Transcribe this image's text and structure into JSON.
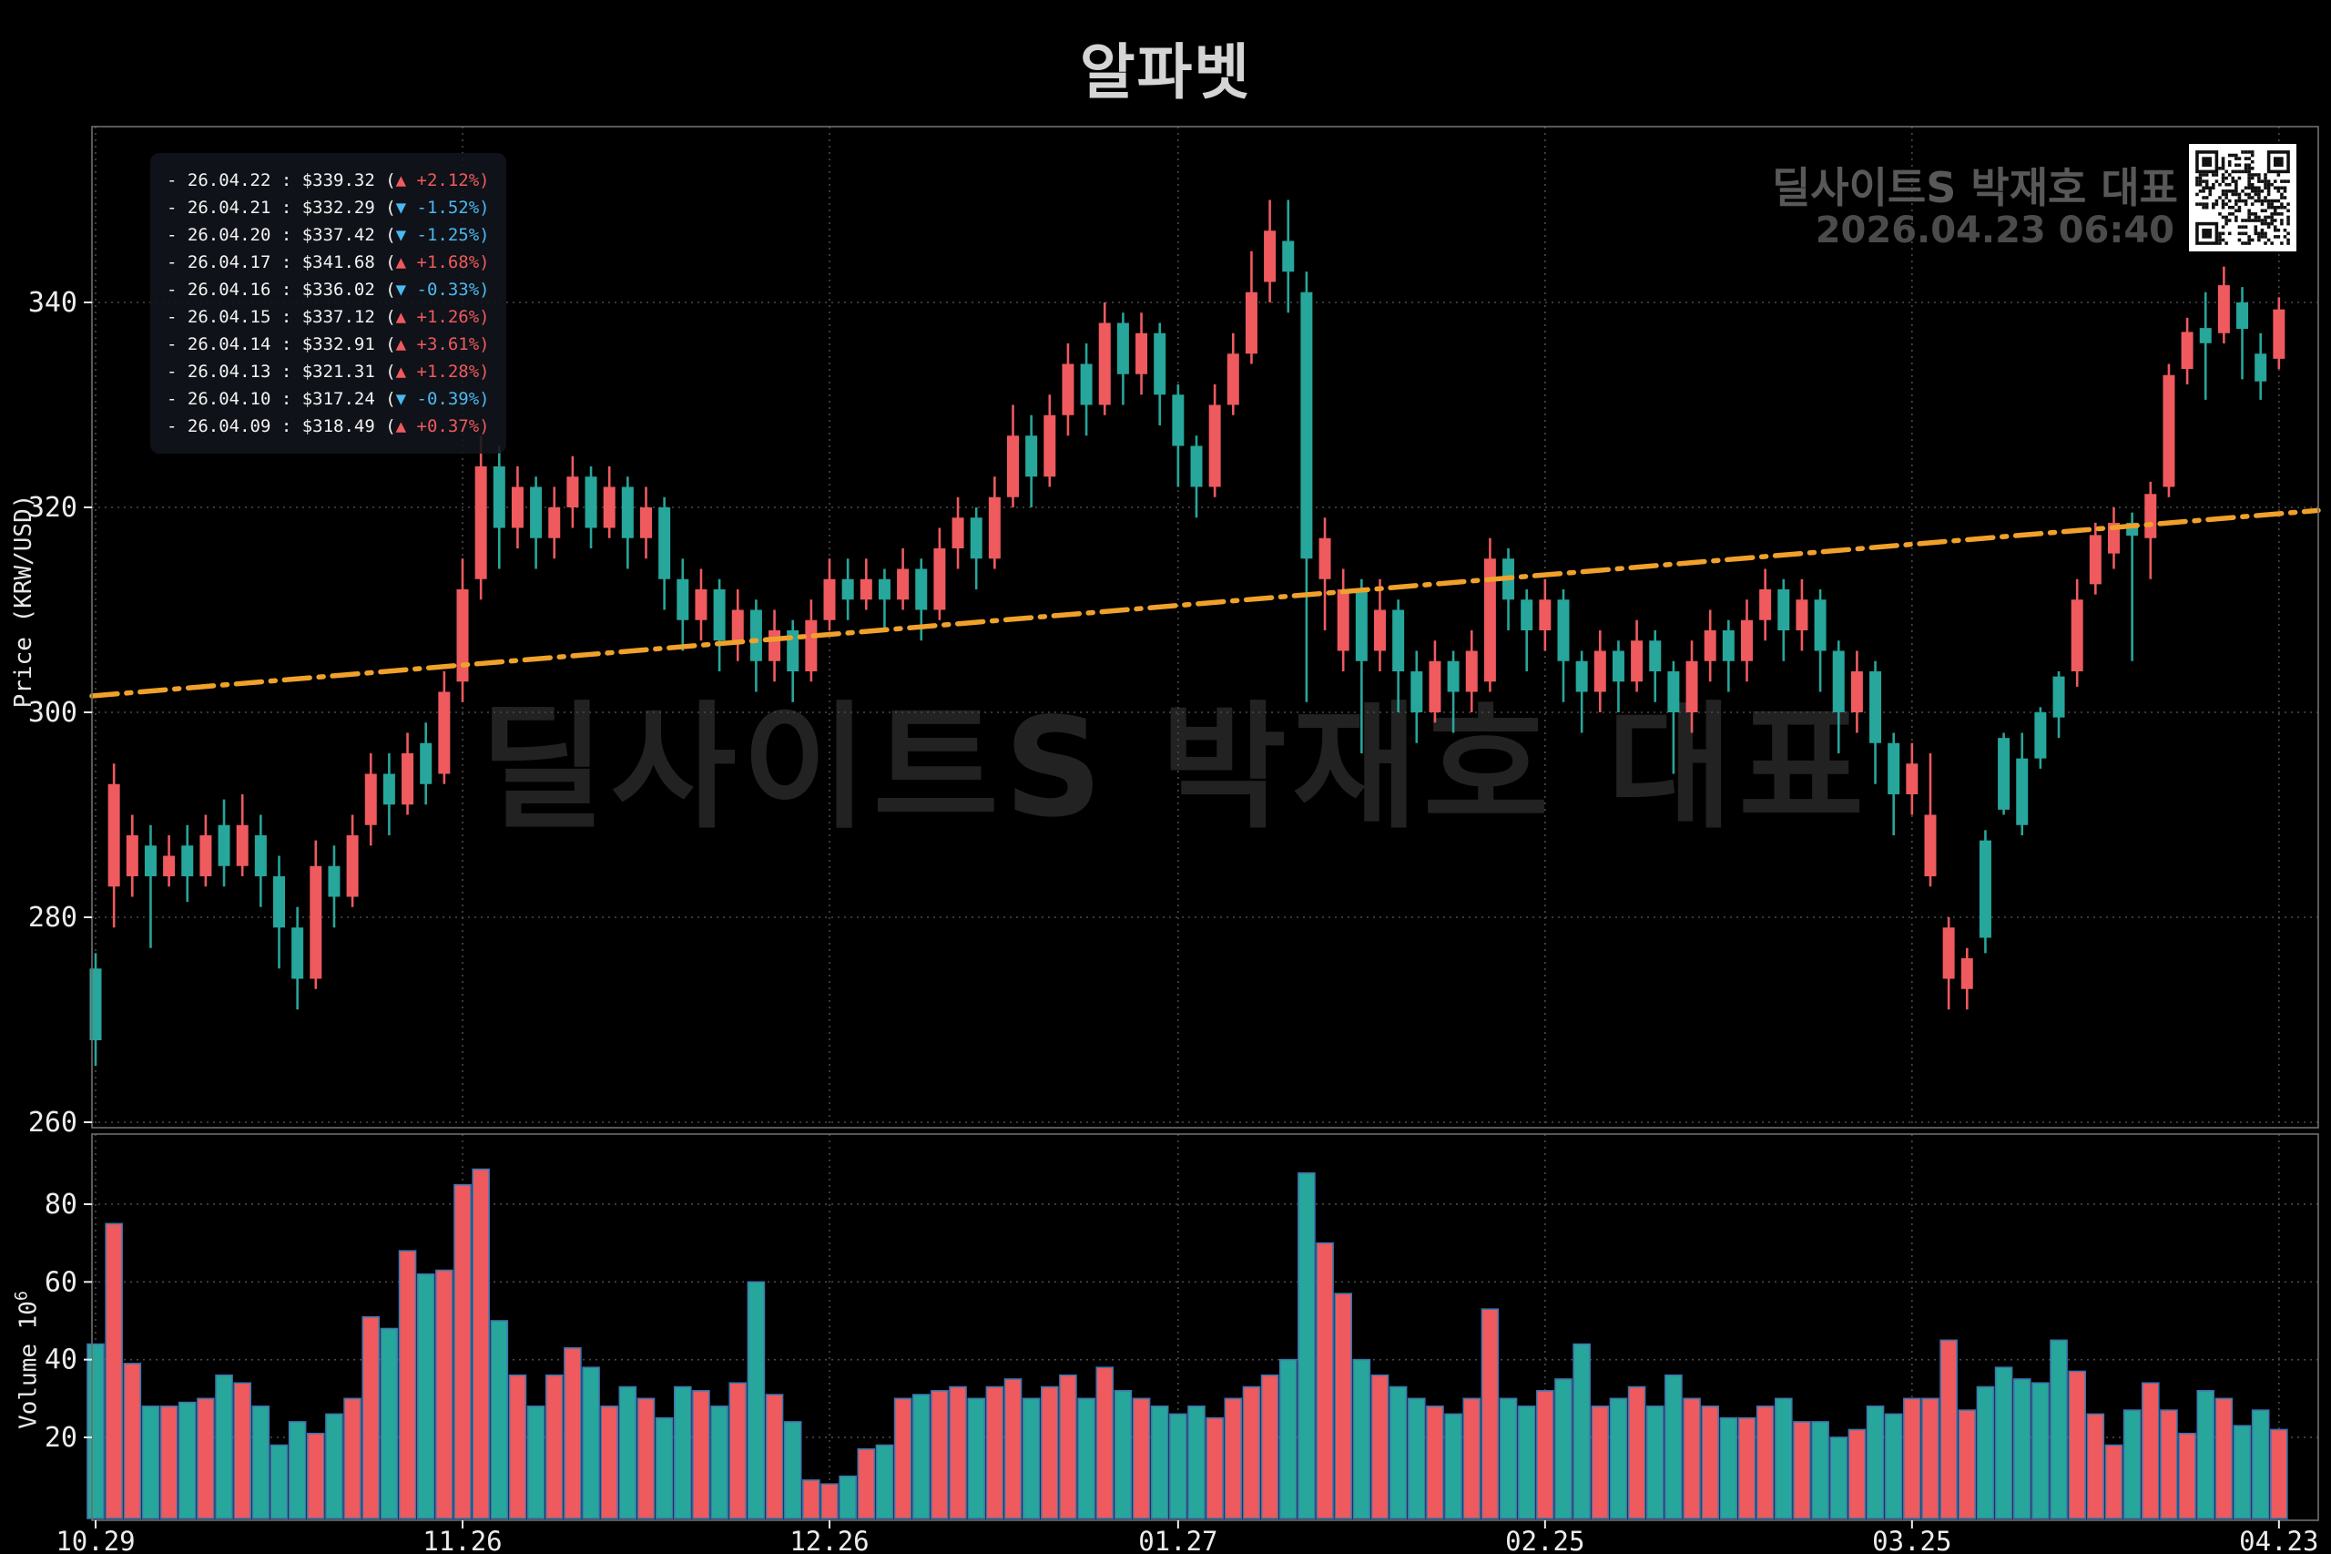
{
  "title": "알파벳",
  "watermark": "딜사이트S 박재호 대표",
  "source": {
    "name": "딜사이트S 박재호 대표",
    "timestamp": "2026.04.23 06:40"
  },
  "legend": {
    "rows": [
      {
        "date": "26.04.22",
        "price": "$339.32",
        "dir": "up",
        "pct": "+2.12%"
      },
      {
        "date": "26.04.21",
        "price": "$332.29",
        "dir": "down",
        "pct": "-1.52%"
      },
      {
        "date": "26.04.20",
        "price": "$337.42",
        "dir": "down",
        "pct": "-1.25%"
      },
      {
        "date": "26.04.17",
        "price": "$341.68",
        "dir": "up",
        "pct": "+1.68%"
      },
      {
        "date": "26.04.16",
        "price": "$336.02",
        "dir": "down",
        "pct": "-0.33%"
      },
      {
        "date": "26.04.15",
        "price": "$337.12",
        "dir": "up",
        "pct": "+1.26%"
      },
      {
        "date": "26.04.14",
        "price": "$332.91",
        "dir": "up",
        "pct": "+3.61%"
      },
      {
        "date": "26.04.13",
        "price": "$321.31",
        "dir": "up",
        "pct": "+1.28%"
      },
      {
        "date": "26.04.10",
        "price": "$317.24",
        "dir": "down",
        "pct": "-0.39%"
      },
      {
        "date": "26.04.09",
        "price": "$318.49",
        "dir": "up",
        "pct": "+0.37%"
      }
    ],
    "up_arrow": "▲",
    "down_arrow": "▼"
  },
  "axes": {
    "price_label": "Price (KRW/USD)",
    "price_ticks": [
      340,
      320,
      300,
      280,
      260
    ],
    "volume_label_base": "Volume  10",
    "volume_label_exp": "6",
    "volume_ticks": [
      80,
      60,
      40,
      20
    ],
    "x_ticks": [
      "10.29",
      "11.26",
      "12.26",
      "01.27",
      "02.25",
      "03.25",
      "04.23"
    ],
    "x_tick_indices": [
      0,
      20,
      40,
      59,
      79,
      99,
      119
    ]
  },
  "colors": {
    "up": "#ee5a5e",
    "down": "#27a69b",
    "volume_edge": "#3e76ae",
    "trend": "#f0a12b",
    "grid": "#4a4a4a",
    "spine": "#6e6e6e",
    "tick_text": "#ececec",
    "legend_up_text": "#ee5a5e",
    "legend_down_text": "#4cb8f0"
  },
  "chart_data": {
    "type": "candlestick",
    "title": "알파벳",
    "ylabel": "Price (KRW/USD)",
    "ylabel2": "Volume 10^6",
    "x_range": [
      "10.29",
      "04.23"
    ],
    "price_ylim": [
      259.5,
      357
    ],
    "volume_ylim": [
      0,
      97
    ],
    "grid": true,
    "trendline": {
      "style": "dashdot",
      "start_price": 301.6,
      "end_price": 319.7
    },
    "ohlc": [
      [
        275,
        276.5,
        265.5,
        268
      ],
      [
        283,
        295,
        279,
        293
      ],
      [
        284,
        290,
        282,
        288
      ],
      [
        287,
        289,
        277,
        284
      ],
      [
        284,
        288,
        283,
        286
      ],
      [
        287,
        289,
        281.5,
        284
      ],
      [
        284,
        290,
        283,
        288
      ],
      [
        289,
        291.5,
        283,
        285
      ],
      [
        285,
        292,
        284,
        289
      ],
      [
        288,
        290,
        281,
        284
      ],
      [
        284,
        286,
        275,
        279
      ],
      [
        279,
        281,
        271,
        274
      ],
      [
        274,
        287.5,
        273,
        285
      ],
      [
        285,
        287,
        279,
        282
      ],
      [
        282,
        290,
        281,
        288
      ],
      [
        289,
        296,
        287,
        294
      ],
      [
        294,
        296,
        288,
        291
      ],
      [
        291,
        298,
        290,
        296
      ],
      [
        297,
        299,
        291,
        293
      ],
      [
        294,
        304,
        293,
        302
      ],
      [
        303,
        315,
        301,
        312
      ],
      [
        313,
        327,
        311,
        324
      ],
      [
        324,
        326,
        314,
        318
      ],
      [
        318,
        324,
        316,
        322
      ],
      [
        322,
        323,
        314,
        317
      ],
      [
        317,
        322,
        315,
        320
      ],
      [
        320,
        325,
        318,
        323
      ],
      [
        323,
        324,
        316,
        318
      ],
      [
        318,
        324,
        317,
        322
      ],
      [
        322,
        323,
        314,
        317
      ],
      [
        317,
        322,
        315,
        320
      ],
      [
        320,
        321,
        310,
        313
      ],
      [
        313,
        315,
        306,
        309
      ],
      [
        309,
        314,
        307,
        312
      ],
      [
        312,
        313,
        304,
        307
      ],
      [
        307,
        312,
        305,
        310
      ],
      [
        310,
        311,
        302,
        305
      ],
      [
        305,
        310,
        303,
        308
      ],
      [
        308,
        309,
        301,
        304
      ],
      [
        304,
        311,
        303,
        309
      ],
      [
        309,
        315,
        308,
        313
      ],
      [
        313,
        315,
        309,
        311
      ],
      [
        311,
        315,
        310,
        313
      ],
      [
        313,
        314,
        308,
        311
      ],
      [
        311,
        316,
        310,
        314
      ],
      [
        314,
        315,
        307,
        310
      ],
      [
        310,
        318,
        309,
        316
      ],
      [
        316,
        321,
        314,
        319
      ],
      [
        319,
        320,
        312,
        315
      ],
      [
        315,
        323,
        314,
        321
      ],
      [
        321,
        330,
        320,
        327
      ],
      [
        327,
        329,
        320,
        323
      ],
      [
        323,
        331,
        322,
        329
      ],
      [
        329,
        336,
        327,
        334
      ],
      [
        334,
        336,
        327,
        330
      ],
      [
        330,
        340,
        329,
        338
      ],
      [
        338,
        339,
        330,
        333
      ],
      [
        333,
        339,
        331,
        337
      ],
      [
        337,
        338,
        328,
        331
      ],
      [
        331,
        332,
        322,
        326
      ],
      [
        326,
        327,
        319,
        322
      ],
      [
        322,
        332,
        321,
        330
      ],
      [
        330,
        337,
        329,
        335
      ],
      [
        335,
        345,
        334,
        341
      ],
      [
        342,
        350,
        340,
        347
      ],
      [
        346,
        350,
        339,
        343
      ],
      [
        341,
        343,
        301,
        315
      ],
      [
        313,
        319,
        308,
        317
      ],
      [
        306,
        314,
        304,
        312
      ],
      [
        312,
        313,
        296,
        305
      ],
      [
        306,
        313,
        304,
        310
      ],
      [
        310,
        311,
        300,
        304
      ],
      [
        304,
        306,
        297,
        300
      ],
      [
        300,
        307,
        299,
        305
      ],
      [
        305,
        306,
        298,
        302
      ],
      [
        302,
        308,
        300,
        306
      ],
      [
        303,
        317,
        302,
        315
      ],
      [
        315,
        316,
        308,
        311
      ],
      [
        311,
        312,
        304,
        308
      ],
      [
        308,
        313,
        306,
        311
      ],
      [
        311,
        312,
        301,
        305
      ],
      [
        305,
        306,
        298,
        302
      ],
      [
        302,
        308,
        300,
        306
      ],
      [
        306,
        307,
        300,
        303
      ],
      [
        303,
        309,
        302,
        307
      ],
      [
        307,
        308,
        301,
        304
      ],
      [
        304,
        305,
        294,
        300
      ],
      [
        300,
        307,
        298,
        305
      ],
      [
        305,
        310,
        303,
        308
      ],
      [
        308,
        309,
        302,
        305
      ],
      [
        305,
        311,
        303,
        309
      ],
      [
        309,
        314,
        307,
        312
      ],
      [
        312,
        313,
        305,
        308
      ],
      [
        308,
        313,
        306,
        311
      ],
      [
        311,
        312,
        302,
        306
      ],
      [
        306,
        307,
        296,
        300
      ],
      [
        300,
        306,
        298,
        304
      ],
      [
        304,
        305,
        293,
        297
      ],
      [
        297,
        298,
        288,
        292
      ],
      [
        292,
        297,
        290,
        295
      ],
      [
        284,
        296,
        283,
        290
      ],
      [
        274,
        280,
        271,
        279
      ],
      [
        273,
        277,
        271,
        276
      ],
      [
        287.5,
        288.5,
        276.5,
        278
      ],
      [
        297.5,
        298,
        290,
        290.5
      ],
      [
        295.5,
        298,
        288,
        289
      ],
      [
        300,
        300.5,
        294.5,
        295.5
      ],
      [
        303.5,
        304,
        297.5,
        299.5
      ],
      [
        304,
        313,
        302.5,
        311
      ],
      [
        312.5,
        318.5,
        311.5,
        317.3
      ],
      [
        315.5,
        320,
        314,
        318.49
      ],
      [
        318.5,
        319.5,
        305,
        317.24
      ],
      [
        317,
        322.5,
        313,
        321.31
      ],
      [
        322,
        334,
        321,
        332.91
      ],
      [
        333.5,
        338.5,
        332,
        337.12
      ],
      [
        337.5,
        341,
        330.5,
        336.02
      ],
      [
        337,
        343.5,
        336,
        341.68
      ],
      [
        340,
        341.5,
        332.5,
        337.42
      ],
      [
        335,
        337,
        330.5,
        332.29
      ],
      [
        334.5,
        340.5,
        333.5,
        339.32
      ]
    ],
    "volumes": [
      44,
      75,
      39,
      28,
      28,
      29,
      30,
      36,
      34,
      28,
      18,
      24,
      21,
      26,
      30,
      51,
      48,
      68,
      62,
      63,
      85,
      89,
      50,
      36,
      28,
      36,
      43,
      38,
      28,
      33,
      30,
      25,
      33,
      32,
      28,
      34,
      60,
      31,
      24,
      9,
      8,
      10,
      17,
      18,
      30,
      31,
      32,
      33,
      30,
      33,
      35,
      30,
      33,
      36,
      30,
      38,
      32,
      30,
      28,
      26,
      28,
      25,
      30,
      33,
      36,
      40,
      88,
      70,
      57,
      40,
      36,
      33,
      30,
      28,
      26,
      30,
      53,
      30,
      28,
      32,
      35,
      44,
      28,
      30,
      33,
      28,
      36,
      30,
      28,
      25,
      25,
      28,
      30,
      24,
      24,
      20,
      22,
      28,
      26,
      30,
      30,
      45,
      27,
      33,
      38,
      35,
      34,
      45,
      37,
      26,
      18,
      27,
      34,
      27,
      21,
      32,
      30,
      23,
      27,
      22
    ]
  }
}
